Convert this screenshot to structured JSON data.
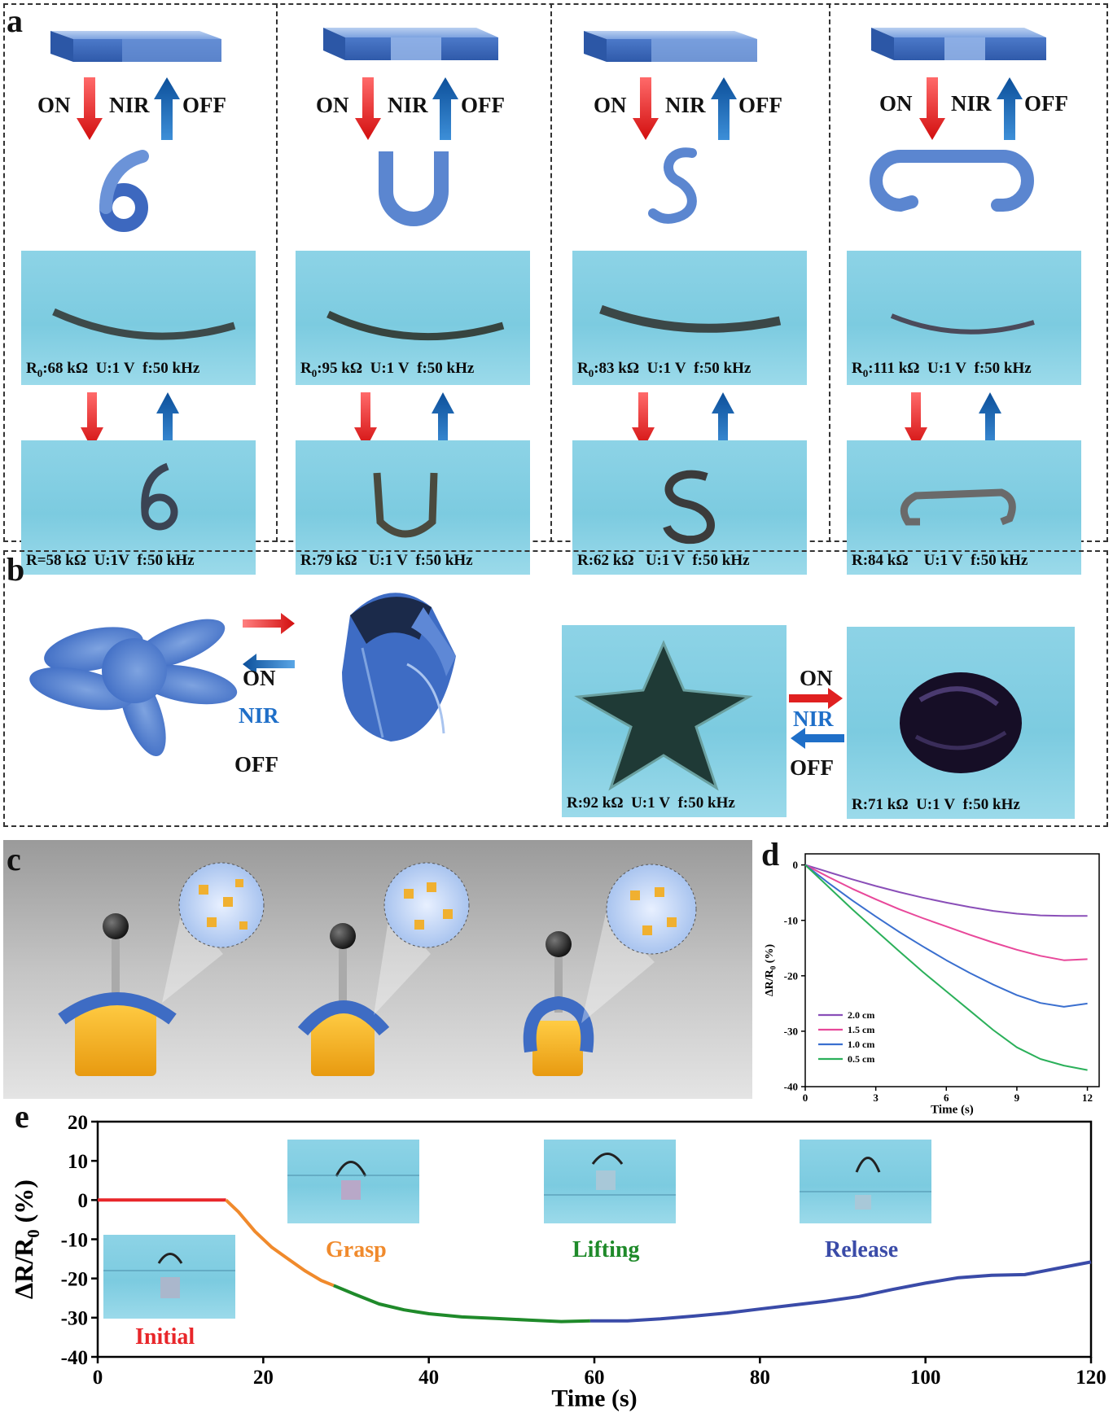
{
  "panels": {
    "a": "a",
    "b": "b",
    "c": "c",
    "d": "d",
    "e": "e"
  },
  "panel_a": {
    "on": "ON",
    "nir": "NIR",
    "off": "OFF",
    "columns": [
      {
        "shape": "6",
        "top_caption": "R0:68 kΩ  U:1 V  f:50 kHz",
        "bottom_caption": "R=58 kΩ  U:1V  f:50 kHz"
      },
      {
        "shape": "U",
        "top_caption": "R0:95 kΩ  U:1 V  f:50 kHz",
        "bottom_caption": "R:79 kΩ   U:1 V  f:50 kHz"
      },
      {
        "shape": "S",
        "top_caption": "R0:83 kΩ  U:1 V  f:50 kHz",
        "bottom_caption": "R:62 kΩ   U:1 V  f:50 kHz"
      },
      {
        "shape": "C",
        "top_caption": "R0:111 kΩ  U:1 V  f:50 kHz",
        "bottom_caption": "R:84 kΩ    U:1 V  f:50 kHz"
      }
    ]
  },
  "panel_b": {
    "on": "ON",
    "nir": "NIR",
    "off": "OFF",
    "star_caption": "R:92 kΩ  U:1 V  f:50 kHz",
    "closed_caption": "R:71 kΩ  U:1 V  f:50 kHz"
  },
  "panel_e": {
    "initial": "Initial",
    "grasp": "Grasp",
    "lifting": "Lifting",
    "release": "Release"
  },
  "chart_data": [
    {
      "type": "line",
      "id": "d",
      "xlabel": "Time (s)",
      "ylabel": "ΔR/R0 (%)",
      "xlim": [
        0,
        12.5
      ],
      "ylim": [
        -40,
        2
      ],
      "xticks": [
        0,
        3,
        6,
        9,
        12
      ],
      "yticks": [
        0,
        -10,
        -20,
        -30,
        -40
      ],
      "legend_position": "bottom-left",
      "series": [
        {
          "name": "2.0 cm",
          "color": "#8a4fb8",
          "x": [
            0,
            1,
            2,
            3,
            4,
            5,
            6,
            7,
            8,
            9,
            10,
            11,
            12
          ],
          "y": [
            0,
            -1.3,
            -2.6,
            -3.8,
            -4.9,
            -5.9,
            -6.8,
            -7.6,
            -8.3,
            -8.8,
            -9.1,
            -9.2,
            -9.2
          ]
        },
        {
          "name": "1.5 cm",
          "color": "#e8489a",
          "x": [
            0,
            1,
            2,
            3,
            4,
            5,
            6,
            7,
            8,
            9,
            10,
            11,
            12
          ],
          "y": [
            0,
            -2.2,
            -4.3,
            -6.2,
            -8.0,
            -9.6,
            -11.1,
            -12.6,
            -14.0,
            -15.3,
            -16.4,
            -17.2,
            -17.0
          ]
        },
        {
          "name": "1.0 cm",
          "color": "#3a6fcf",
          "x": [
            0,
            1,
            2,
            3,
            4,
            5,
            6,
            7,
            8,
            9,
            10,
            11,
            12
          ],
          "y": [
            0,
            -3.3,
            -6.4,
            -9.3,
            -12.1,
            -14.7,
            -17.2,
            -19.5,
            -21.6,
            -23.5,
            -24.9,
            -25.6,
            -25.0
          ]
        },
        {
          "name": "0.5 cm",
          "color": "#2bb05a",
          "x": [
            0,
            1,
            2,
            3,
            4,
            5,
            6,
            7,
            8,
            9,
            10,
            11,
            12
          ],
          "y": [
            0,
            -4.0,
            -8.0,
            -11.8,
            -15.6,
            -19.3,
            -22.8,
            -26.3,
            -29.8,
            -32.9,
            -35.0,
            -36.2,
            -37.0
          ]
        }
      ]
    },
    {
      "type": "line",
      "id": "e",
      "xlabel": "Time (s)",
      "ylabel": "ΔR/R0 (%)",
      "xlim": [
        0,
        120
      ],
      "ylim": [
        -40,
        20
      ],
      "xticks": [
        0,
        20,
        40,
        60,
        80,
        100,
        120
      ],
      "yticks": [
        20,
        10,
        0,
        -10,
        -20,
        -30,
        -40
      ],
      "series": [
        {
          "name": "Initial",
          "color": "#e8262a",
          "x": [
            0,
            5,
            10,
            15.5
          ],
          "y": [
            0,
            0,
            0,
            0
          ]
        },
        {
          "name": "Grasp",
          "color": "#f08a2c",
          "x": [
            15.5,
            17,
            19,
            21,
            23,
            25,
            27,
            28.5
          ],
          "y": [
            0,
            -3,
            -8,
            -12,
            -15,
            -18,
            -20.5,
            -21.8
          ]
        },
        {
          "name": "Lifting",
          "color": "#1f8a2a",
          "x": [
            28.5,
            31,
            34,
            37,
            40,
            44,
            48,
            52,
            56,
            59.5
          ],
          "y": [
            -21.8,
            -24,
            -26.5,
            -28,
            -29,
            -29.8,
            -30.2,
            -30.6,
            -31,
            -30.8
          ]
        },
        {
          "name": "Release",
          "color": "#3a4ba8",
          "x": [
            59.5,
            64,
            68,
            72,
            76,
            80,
            84,
            88,
            92,
            96,
            100,
            104,
            108,
            112,
            116,
            120
          ],
          "y": [
            -30.8,
            -30.8,
            -30.3,
            -29.6,
            -28.8,
            -27.8,
            -26.8,
            -25.8,
            -24.6,
            -22.8,
            -21.2,
            -19.8,
            -19.2,
            -19.0,
            -17.4,
            -15.8
          ]
        }
      ]
    }
  ]
}
